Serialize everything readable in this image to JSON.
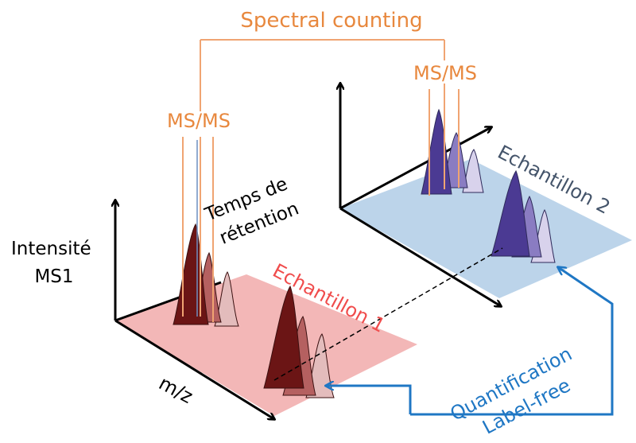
{
  "labels": {
    "spectral_counting": "Spectral counting",
    "msms_left": "MS/MS",
    "msms_right": "MS/MS",
    "intensity_line1": "Intensité",
    "intensity_line2": "MS1",
    "mz": "m/z",
    "retention_line1": "Temps de",
    "retention_line2": "rétention",
    "sample1": "Echantillon 1",
    "sample2": "Echantillon 2",
    "quant_line1": "Quantification",
    "quant_line2": "Label-free"
  },
  "colors": {
    "orange": "#e8883e",
    "orange_line": "#f0a472",
    "plane1": "#f3b7b7",
    "plane2": "#bcd4ea",
    "sample1_text": "#f04c4c",
    "sample2_text": "#44546a",
    "blue": "#1f77c4",
    "peak_dark_red": "#6b1515",
    "peak_mid_red": "#b56060",
    "peak_light_red": "#e3bcbc",
    "peak_dark_purple": "#4b3a93",
    "peak_mid_purple": "#8a7cc2",
    "peak_light_purple": "#d8d2ec"
  }
}
